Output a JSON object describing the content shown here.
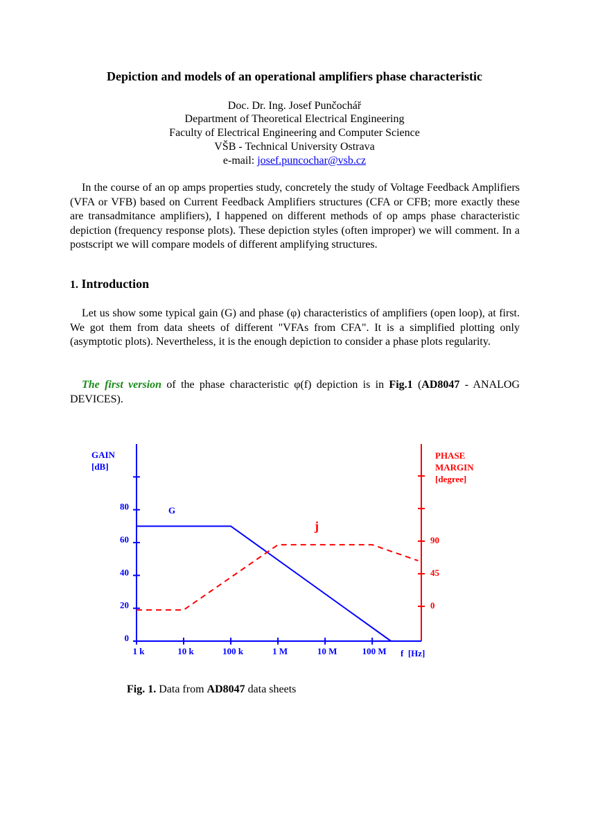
{
  "header": {
    "title": "Depiction and models of an operational amplifiers phase characteristic",
    "author": "Doc. Dr. Ing. Josef Punčochář",
    "department": "Department of Theoretical Electrical Engineering",
    "faculty": "Faculty of Electrical Engineering and Computer Science",
    "university": "VŠB - Technical University Ostrava",
    "email_label": "e-mail:",
    "email": "josef.puncochar@vsb.cz"
  },
  "abstract": "In the course of an op amps properties study, concretely the study of Voltage Feedback Amplifiers (VFA or VFB) based on Current Feedback Amplifiers structures (CFA or CFB; more exactly these are transadmitance amplifiers), I happened on different methods of op amps phase characteristic depiction  (frequency response plots). These depiction styles (often improper) we will comment. In a postscript we will compare models of different amplifying structures.",
  "section": {
    "number": "1.",
    "title": "Introduction"
  },
  "paragraphs": [
    [
      "Let us show some typical gain (G) and phase (φ) characteristics of amplifiers (open loop), at first. We got them from data sheets of  different \"VFAs from CFA\". It is a simplified plotting only (asymptotic plots). Nevertheless, it is the enough depiction to consider a phase plots regularity."
    ],
    [
      "The first version",
      "of the phase characteristic φ(f) depiction is in",
      "Fig.1",
      "(",
      "AD8047",
      "- ANALOG DEVICES)."
    ]
  ],
  "chart_data": {
    "type": "line",
    "y_label": [
      "GAIN",
      "[dB]"
    ],
    "y2_label": [
      "PHASE",
      "MARGIN",
      "[degree]"
    ],
    "x_label": "f  [Hz]",
    "log_x": true,
    "xlim": [
      1000,
      1100000000
    ],
    "xticks": [
      {
        "value": 1000,
        "label": "1 k"
      },
      {
        "value": 10000,
        "label": "10 k"
      },
      {
        "value": 100000,
        "label": "100 k"
      },
      {
        "value": 1000000,
        "label": "1 M"
      },
      {
        "value": 10000000,
        "label": "10 M"
      },
      {
        "value": 100000000,
        "label": "100 M"
      }
    ],
    "ylim": [
      0,
      120
    ],
    "yticks": [
      0,
      20,
      40,
      60,
      80
    ],
    "y_unlabeled_ticks": [
      100
    ],
    "y2lim": [
      -48,
      224
    ],
    "y2ticks": [
      0,
      45,
      90
    ],
    "y2_unlabeled_ticks": [
      135,
      180
    ],
    "y_axis_color": "#0000ff",
    "y2_axis_color": "#ff0000",
    "series": [
      {
        "name": "G",
        "color": "#0000ff",
        "line_style": "solid",
        "x": [
          1000,
          100000,
          250000000
        ],
        "values": [
          70,
          70,
          0
        ]
      },
      {
        "name": "j",
        "color": "#ff0000",
        "line_style": "dashed",
        "axis": "y2",
        "x": [
          1000,
          10000,
          1000000,
          100000000,
          940000000
        ],
        "values": [
          -5,
          -5,
          85,
          85,
          63
        ]
      }
    ]
  },
  "caption": {
    "label": "Fig. 1.",
    "text": "Data from",
    "chip": "AD8047",
    "text_end": "data sheets"
  }
}
